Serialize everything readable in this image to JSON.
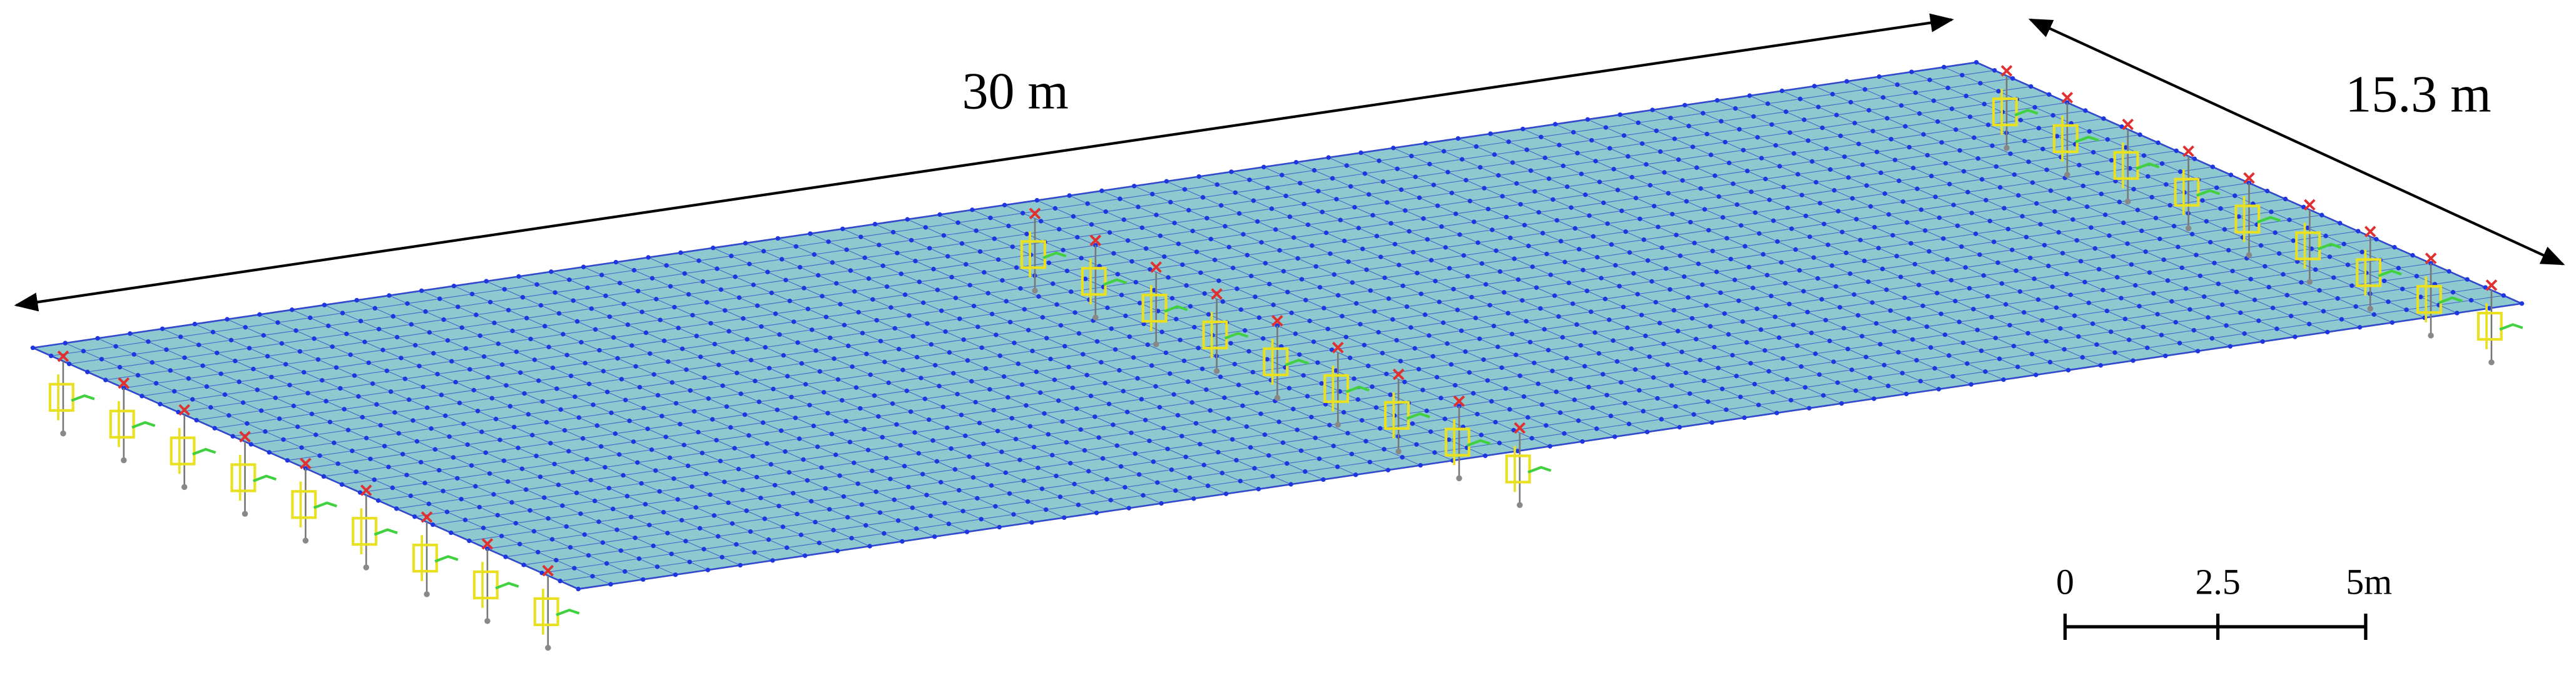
{
  "dimensions": {
    "length": "30 m",
    "width": "15.3 m"
  },
  "scale_bar": {
    "labels": [
      "0",
      "2.5",
      "5m"
    ]
  }
}
